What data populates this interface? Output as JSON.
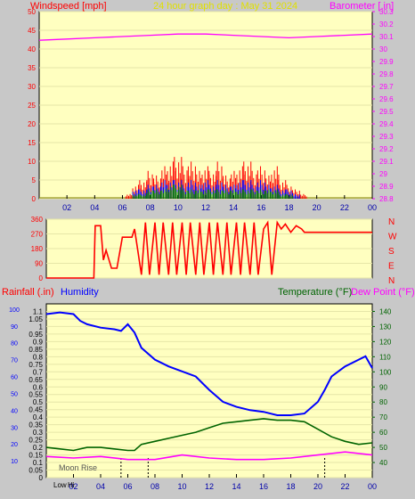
{
  "header": {
    "left_label": "Windspeed [mph]",
    "center_label": "24 hour graph day : May 31 2024",
    "right_label": "Barometer [.in]"
  },
  "rain_panel": {
    "left_label": "Rainfall (.in)",
    "left_label2": "Humidity",
    "right_label": "Temperature (°F)",
    "right_label2": "Dew Point (°F)"
  },
  "colors": {
    "background": "#c8c8c8",
    "plot_bg": "#ffffc0",
    "wind": "#ff0000",
    "gust": "#0000ff",
    "avg": "#008000",
    "baro": "#ff00ff",
    "humidity": "#0000ff",
    "temperature": "#006400",
    "dewpoint": "#ff00ff",
    "header_left": "#ff0000",
    "header_center": "#e0e000",
    "header_right": "#ff00ff"
  },
  "chart_data": [
    {
      "type": "line",
      "x_ticks": [
        "02",
        "04",
        "06",
        "08",
        "10",
        "12",
        "14",
        "16",
        "18",
        "20",
        "22",
        "00"
      ],
      "left_axis": {
        "ylim": [
          0,
          50
        ],
        "ticks": [
          "0",
          "5",
          "10",
          "15",
          "20",
          "25",
          "30",
          "35",
          "40",
          "45",
          "50"
        ]
      },
      "right_axis": {
        "ylim": [
          28.8,
          30.3
        ],
        "ticks": [
          "28.8",
          "28.9",
          "29",
          "29.1",
          "29.2",
          "29.3",
          "29.4",
          "29.5",
          "29.6",
          "29.7",
          "29.8",
          "29.9",
          "30",
          "30.1",
          "30.2",
          "30.3"
        ]
      },
      "series": [
        {
          "name": "Barometer",
          "x": [
            0,
            2,
            4,
            6,
            8,
            10,
            12,
            14,
            16,
            18,
            20,
            22,
            24
          ],
          "values": [
            30.07,
            30.08,
            30.09,
            30.1,
            30.11,
            30.12,
            30.12,
            30.11,
            30.1,
            30.09,
            30.1,
            30.11,
            30.12
          ]
        },
        {
          "name": "Windspeed",
          "x": [
            6.5,
            7,
            7.5,
            8,
            8.5,
            9,
            9.5,
            10,
            10.5,
            11,
            11.5,
            12,
            12.5,
            13,
            13.5,
            14,
            14.5,
            15,
            15.5,
            16,
            16.5,
            17,
            17.5,
            18,
            18.5,
            19
          ],
          "values": [
            1,
            3,
            4,
            6,
            5,
            7,
            8,
            9,
            7,
            8,
            6,
            7,
            6,
            8,
            5,
            6,
            7,
            8,
            6,
            7,
            5,
            7,
            4,
            3,
            2,
            1
          ]
        },
        {
          "name": "Gust",
          "x": [
            6.5,
            7,
            7.5,
            8,
            8.5,
            9,
            9.5,
            10,
            10.5,
            11,
            11.5,
            12,
            12.5,
            13,
            13.5,
            14,
            14.5,
            15,
            15.5,
            16,
            16.5,
            17,
            17.5,
            18,
            18.5,
            19
          ],
          "values": [
            0,
            2,
            2,
            3,
            3,
            4,
            4,
            4,
            3,
            4,
            3,
            4,
            3,
            4,
            3,
            3,
            4,
            4,
            3,
            4,
            3,
            3,
            2,
            2,
            1,
            0
          ]
        },
        {
          "name": "Average",
          "x": [
            6.5,
            7,
            7.5,
            8,
            8.5,
            9,
            9.5,
            10,
            10.5,
            11,
            11.5,
            12,
            12.5,
            13,
            13.5,
            14,
            14.5,
            15,
            15.5,
            16,
            16.5,
            17,
            17.5,
            18,
            18.5,
            19
          ],
          "values": [
            0,
            1,
            1,
            2,
            2,
            2,
            3,
            3,
            2,
            2,
            2,
            2,
            2,
            2,
            2,
            2,
            2,
            2,
            2,
            2,
            2,
            2,
            1,
            1,
            0,
            0
          ]
        }
      ]
    },
    {
      "type": "line",
      "right_ticks": [
        "N",
        "W",
        "S",
        "E",
        "N"
      ],
      "left_axis": {
        "ylim": [
          0,
          360
        ],
        "ticks": [
          "0",
          "90",
          "180",
          "270",
          "360"
        ]
      },
      "series": [
        {
          "name": "Wind Direction",
          "x": [
            0,
            3.5,
            3.6,
            4,
            4.2,
            4.4,
            4.8,
            5.2,
            5.6,
            6.3,
            6.5,
            7,
            7.3,
            7.6,
            8,
            8.3,
            8.6,
            9,
            9.3,
            9.6,
            10,
            10.3,
            10.6,
            11,
            11.3,
            11.6,
            12,
            12.3,
            12.6,
            13,
            13.3,
            13.6,
            14,
            14.3,
            14.6,
            15,
            15.3,
            15.6,
            16,
            16.3,
            16.6,
            17,
            17.3,
            17.6,
            18,
            18.4,
            18.8,
            19,
            20,
            22,
            24
          ],
          "values": [
            0,
            0,
            320,
            320,
            110,
            170,
            60,
            60,
            250,
            250,
            300,
            20,
            340,
            20,
            340,
            20,
            340,
            20,
            340,
            20,
            340,
            20,
            340,
            20,
            340,
            20,
            340,
            20,
            340,
            20,
            340,
            20,
            340,
            20,
            340,
            20,
            340,
            20,
            300,
            340,
            20,
            340,
            300,
            330,
            280,
            320,
            300,
            280,
            280,
            280,
            280
          ]
        }
      ]
    },
    {
      "type": "line",
      "x_ticks": [
        "02",
        "04",
        "06",
        "08",
        "10",
        "12",
        "14",
        "16",
        "18",
        "20",
        "22",
        "00"
      ],
      "left_axis": {
        "ylim": [
          0,
          1.15
        ],
        "ticks": [
          "0",
          "0.05",
          "0.1",
          "0.15",
          "0.2",
          "0.25",
          "0.3",
          "0.35",
          "0.4",
          "0.45",
          "0.5",
          "0.55",
          "0.6",
          "0.65",
          "0.7",
          "0.75",
          "0.8",
          "0.85",
          "0.9",
          "0.95",
          "1",
          "1.05",
          "1.1"
        ]
      },
      "humidity_ticks": [
        "10",
        "20",
        "30",
        "40",
        "50",
        "60",
        "70",
        "80",
        "90",
        "100"
      ],
      "right_axis": {
        "ylim": [
          30,
          145
        ],
        "ticks": [
          "40",
          "50",
          "60",
          "70",
          "80",
          "90",
          "100",
          "110",
          "120",
          "130",
          "140"
        ]
      },
      "annotations": [
        "Moon Rise",
        "Low",
        "Hi"
      ],
      "series": [
        {
          "name": "Humidity",
          "x": [
            0,
            1,
            2,
            2.5,
            3,
            4,
            5,
            5.5,
            6,
            6.5,
            7,
            8,
            9,
            10,
            11,
            12,
            13,
            14,
            15,
            16,
            17,
            18,
            19,
            20,
            20.5,
            21,
            22,
            23,
            23.5,
            24
          ],
          "values": [
            97,
            98,
            97,
            93,
            91,
            89,
            88,
            87,
            91,
            86,
            77,
            70,
            66,
            63,
            60,
            52,
            45,
            42,
            40,
            39,
            37,
            37,
            38,
            45,
            52,
            60,
            66,
            70,
            72,
            65
          ]
        },
        {
          "name": "Temperature",
          "x": [
            0,
            1,
            2,
            3,
            4,
            5,
            6,
            6.5,
            7,
            8,
            9,
            10,
            11,
            12,
            13,
            14,
            15,
            16,
            17,
            18,
            19,
            20,
            21,
            22,
            23,
            24
          ],
          "values": [
            50,
            49,
            48,
            50,
            50,
            49,
            48,
            48,
            52,
            54,
            56,
            58,
            60,
            63,
            66,
            67,
            68,
            69,
            68,
            68,
            67,
            62,
            57,
            54,
            52,
            53
          ]
        },
        {
          "name": "Dew Point",
          "x": [
            0,
            2,
            4,
            6,
            8,
            10,
            12,
            14,
            16,
            18,
            20,
            22,
            24
          ],
          "values": [
            44,
            43,
            44,
            42,
            42,
            45,
            43,
            42,
            42,
            43,
            45,
            47,
            45
          ]
        }
      ]
    }
  ]
}
